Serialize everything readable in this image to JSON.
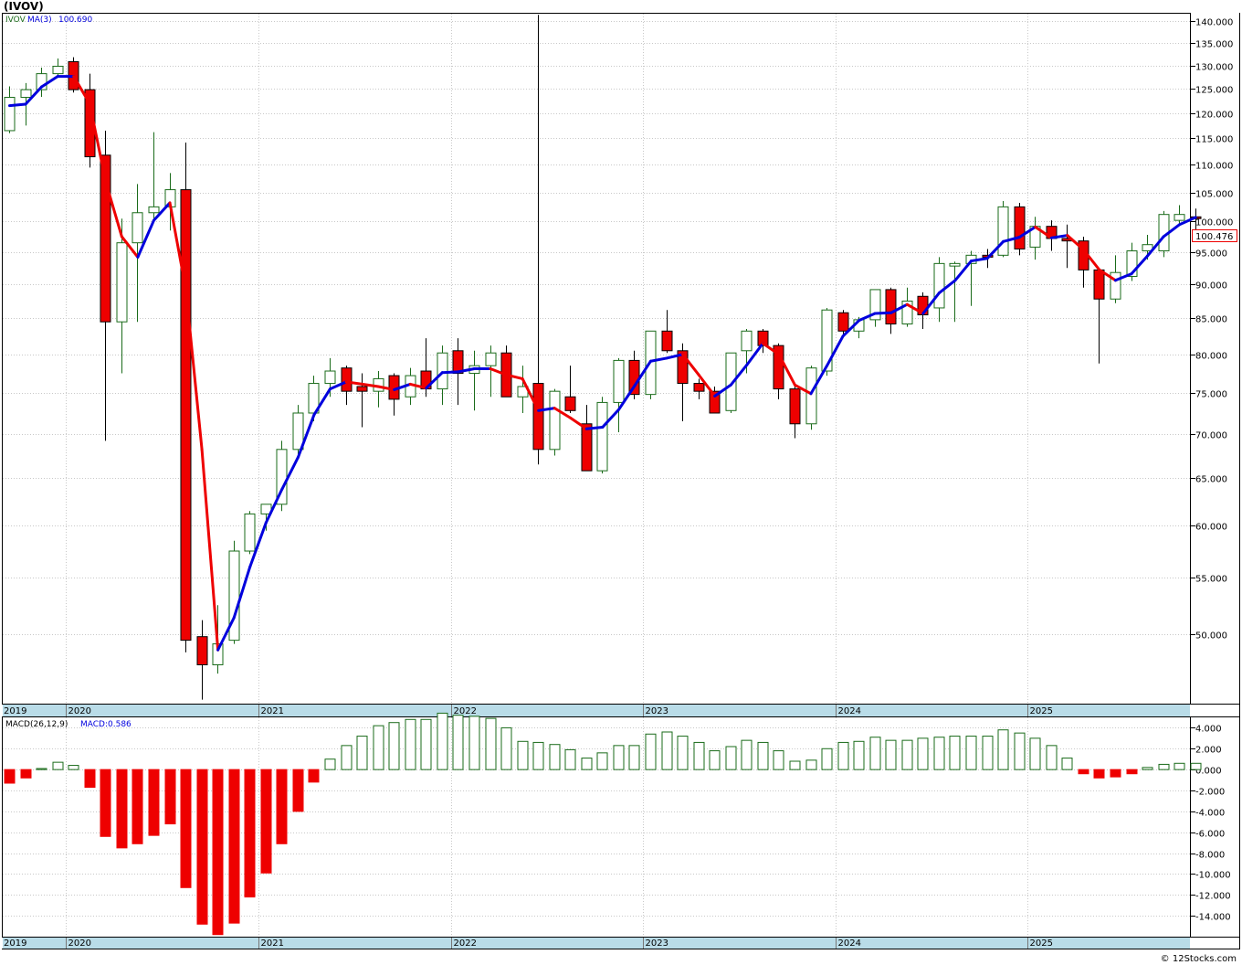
{
  "header": {
    "symbol": "(IVOV)",
    "legend_ticker": "IVOV",
    "legend_ma_label": "MA(3)",
    "legend_ma_value": "100.690",
    "last_price": "100.476",
    "macd_label": "MACD(26,12,9)",
    "macd_value_label": "MACD:0.586",
    "watermark": "© 12Stocks.com"
  },
  "colors": {
    "up_candle": "#1a6b1a",
    "down_candle": "#ee0000",
    "ma_up": "#0000dd",
    "ma_down": "#ee0000",
    "axis_band": "#b9dce8",
    "grid": "#c8c8c8"
  },
  "chart_data": [
    {
      "type": "candlestick",
      "scale": "log",
      "ylim": [
        44.5,
        142
      ],
      "y_ticks": [
        50,
        55,
        60,
        65,
        70,
        75,
        80,
        85,
        90,
        95,
        100,
        105,
        110,
        115,
        120,
        125,
        130,
        135,
        140
      ],
      "y_tick_labels": [
        "50.000",
        "55.000",
        "60.000",
        "65.000",
        "70.000",
        "75.000",
        "80.000",
        "85.000",
        "90.000",
        "95.000",
        "100.000",
        "105.000",
        "110.000",
        "115.000",
        "120.000",
        "125.000",
        "130.000",
        "135.000",
        "140.000"
      ],
      "x_labels": [
        {
          "label": "2019",
          "index": 0
        },
        {
          "label": "2020",
          "index": 4
        },
        {
          "label": "2021",
          "index": 16
        },
        {
          "label": "2022",
          "index": 28
        },
        {
          "label": "2023",
          "index": 40
        },
        {
          "label": "2024",
          "index": 52
        },
        {
          "label": "2025",
          "index": 64
        }
      ],
      "ohlc": [
        [
          116.5,
          125.5,
          116,
          123.2
        ],
        [
          123.2,
          126.2,
          117.5,
          124.8
        ],
        [
          124.8,
          129.5,
          123.3,
          128.2
        ],
        [
          128.2,
          131.5,
          127.5,
          129.8
        ],
        [
          130.8,
          131.8,
          124.2,
          124.8
        ],
        [
          124.8,
          128.2,
          109.5,
          111.5
        ],
        [
          111.8,
          116.5,
          69.2,
          84.5
        ],
        [
          84.5,
          100.5,
          77.5,
          96.5
        ],
        [
          96.5,
          106.5,
          84.5,
          101.5
        ],
        [
          101.5,
          116.2,
          100.5,
          102.5
        ],
        [
          102.5,
          108.5,
          98.5,
          105.5
        ],
        [
          105.5,
          114.2,
          48.5,
          49.5
        ],
        [
          49.8,
          51.2,
          44.8,
          47.5
        ],
        [
          47.5,
          52.5,
          46.8,
          49.2
        ],
        [
          49.5,
          58.5,
          49.2,
          57.5
        ],
        [
          57.5,
          61.5,
          57.2,
          61.2
        ],
        [
          61.2,
          62.2,
          59.5,
          62.2
        ],
        [
          62.2,
          69.2,
          61.5,
          68.2
        ],
        [
          68.2,
          73.5,
          67.5,
          72.5
        ],
        [
          72.5,
          77.2,
          71.5,
          76.2
        ],
        [
          76.2,
          79.5,
          74.5,
          77.8
        ],
        [
          78.2,
          78.5,
          73.5,
          75.2
        ],
        [
          75.8,
          77.5,
          70.8,
          75.2
        ],
        [
          75.2,
          77.8,
          73.2,
          76.8
        ],
        [
          77.2,
          77.5,
          72.2,
          74.2
        ],
        [
          74.5,
          78.2,
          73.5,
          77.2
        ],
        [
          77.8,
          82.2,
          74.5,
          75.5
        ],
        [
          75.5,
          81.2,
          73.5,
          80.2
        ],
        [
          80.5,
          82.2,
          73.5,
          77.5
        ],
        [
          77.5,
          80.5,
          72.8,
          78.5
        ],
        [
          78.5,
          81.2,
          74.5,
          80.2
        ],
        [
          80.2,
          81.2,
          74.5,
          74.5
        ],
        [
          74.5,
          78.5,
          72.5,
          75.8
        ],
        [
          76.2,
          141.5,
          66.5,
          68.2
        ],
        [
          68.2,
          75.5,
          67.5,
          75.2
        ],
        [
          74.5,
          78.5,
          72.5,
          72.8
        ],
        [
          71.2,
          73.5,
          65.8,
          65.8
        ],
        [
          65.8,
          74.5,
          65.5,
          73.8
        ],
        [
          73.8,
          79.5,
          70.2,
          79.2
        ],
        [
          79.2,
          80.5,
          74.2,
          74.8
        ],
        [
          74.8,
          83.2,
          74.2,
          83.2
        ],
        [
          83.2,
          86.2,
          80.2,
          80.5
        ],
        [
          80.5,
          81.5,
          71.5,
          76.2
        ],
        [
          76.2,
          76.8,
          74.2,
          75.2
        ],
        [
          75.2,
          75.8,
          72.5,
          72.5
        ],
        [
          72.8,
          80.2,
          72.5,
          80.2
        ],
        [
          80.5,
          83.5,
          77.5,
          83.2
        ],
        [
          83.2,
          83.5,
          80.2,
          81.2
        ],
        [
          81.2,
          81.5,
          74.2,
          75.5
        ],
        [
          75.5,
          75.8,
          69.5,
          71.2
        ],
        [
          71.2,
          78.5,
          70.5,
          78.2
        ],
        [
          77.8,
          86.5,
          77.2,
          86.2
        ],
        [
          85.8,
          86.2,
          82.5,
          83.2
        ],
        [
          83.2,
          85.2,
          82.2,
          84.8
        ],
        [
          84.8,
          89.2,
          83.8,
          89.2
        ],
        [
          89.2,
          89.5,
          82.8,
          84.2
        ],
        [
          84.2,
          89.5,
          83.8,
          87.5
        ],
        [
          88.2,
          88.8,
          83.5,
          85.5
        ],
        [
          86.5,
          94.2,
          84.5,
          93.2
        ],
        [
          92.8,
          93.5,
          84.5,
          93.2
        ],
        [
          93.2,
          95.2,
          86.8,
          94.5
        ],
        [
          94.5,
          95.5,
          92.5,
          94.2
        ],
        [
          94.5,
          103.5,
          94.2,
          102.5
        ],
        [
          102.5,
          103.2,
          94.5,
          95.5
        ],
        [
          95.8,
          100.8,
          93.8,
          99.2
        ],
        [
          99.2,
          100.2,
          95.2,
          97.2
        ],
        [
          97.2,
          99.5,
          92.5,
          96.8
        ],
        [
          96.8,
          97.5,
          89.5,
          92.2
        ],
        [
          92.2,
          92.5,
          78.8,
          87.8
        ],
        [
          87.8,
          94.5,
          87.2,
          91.8
        ],
        [
          91.2,
          96.5,
          90.5,
          95.2
        ],
        [
          95.2,
          97.8,
          93.8,
          96.2
        ],
        [
          95.2,
          101.8,
          94.2,
          101.2
        ],
        [
          100.2,
          102.8,
          99.5,
          101.2
        ],
        [
          100.8,
          102.2,
          97.5,
          100.5
        ]
      ],
      "ma3": [
        121.5,
        121.8,
        125.4,
        127.6,
        127.6,
        121.9,
        106.9,
        97.5,
        94.2,
        100.2,
        103.2,
        89.2,
        68.2,
        48.7,
        51.4,
        56.0,
        60.3,
        63.8,
        67.3,
        72.3,
        75.5,
        76.4,
        76.1,
        75.8,
        75.4,
        76.1,
        75.6,
        77.6,
        77.7,
        78.1,
        78.1,
        77.3,
        76.8,
        72.8,
        73.1,
        71.9,
        70.6,
        70.8,
        72.9,
        75.9,
        79.1,
        79.5,
        80.0,
        77.3,
        74.6,
        76.0,
        78.6,
        81.5,
        80.0,
        76.0,
        74.9,
        78.5,
        82.5,
        84.7,
        85.7,
        85.8,
        87.0,
        85.7,
        88.7,
        90.6,
        93.6,
        94.0,
        96.7,
        97.4,
        99.1,
        97.3,
        97.7,
        95.4,
        92.2,
        90.6,
        91.6,
        94.4,
        97.5,
        99.5,
        100.7
      ],
      "macd_hist": [
        -1.3,
        -0.8,
        0.1,
        0.7,
        0.4,
        -1.7,
        -6.4,
        -7.5,
        -7.1,
        -6.3,
        -5.2,
        -11.3,
        -14.8,
        -15.8,
        -14.7,
        -12.2,
        -9.9,
        -7.1,
        -4.0,
        -1.2,
        1.0,
        2.3,
        3.2,
        4.2,
        4.5,
        4.8,
        4.8,
        5.4,
        5.2,
        5.1,
        4.9,
        4.0,
        2.7,
        2.6,
        2.4,
        1.9,
        1.1,
        1.6,
        2.3,
        2.3,
        3.4,
        3.6,
        3.2,
        2.6,
        1.8,
        2.2,
        2.8,
        2.6,
        1.8,
        0.8,
        0.9,
        2.0,
        2.6,
        2.7,
        3.1,
        2.8,
        2.8,
        3.0,
        3.1,
        3.2,
        3.2,
        3.2,
        3.8,
        3.5,
        3.0,
        2.3,
        1.1,
        -0.4,
        -0.8,
        -0.7,
        -0.4,
        0.2,
        0.5,
        0.6,
        0.6
      ],
      "macd": {
        "ylim": [
          -16,
          5
        ],
        "y_ticks": [
          4,
          2,
          0,
          -2,
          -4,
          -6,
          -8,
          -10,
          -12,
          -14
        ],
        "y_tick_labels": [
          "4.000",
          "2.000",
          "0.000",
          "-2.000",
          "-4.000",
          "-6.000",
          "-8.000",
          "-10.000",
          "-12.000",
          "-14.000"
        ]
      }
    }
  ]
}
